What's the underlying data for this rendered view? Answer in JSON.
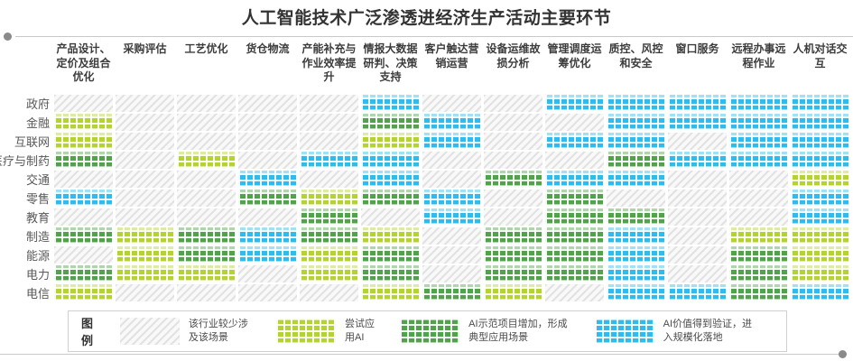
{
  "title": "人工智能技术广泛渗透进经济生产活动主要环节",
  "legend": {
    "title": "图例",
    "items": [
      {
        "code": 0,
        "label": "该行业较少涉及该场景"
      },
      {
        "code": 1,
        "label": "尝试应用AI"
      },
      {
        "code": 2,
        "label": "AI示范项目增加，形成典型应用场景"
      },
      {
        "code": 3,
        "label": "AI价值得到验证，进入规模化落地"
      }
    ]
  },
  "chart_data": {
    "type": "heatmap",
    "title": "人工智能技术广泛渗透进经济生产活动主要环节",
    "columns": [
      "产品设计、定价及组合优化",
      "采购评估",
      "工艺优化",
      "货仓物流",
      "产能补充与作业效率提升",
      "情报大数据研判、决策支持",
      "客户触达营销运营",
      "设备运维故损分析",
      "管理调度运筹优化",
      "质控、风控和安全",
      "窗口服务",
      "远程办事远程作业",
      "人机对话交互"
    ],
    "rows": [
      "政府",
      "金融",
      "互联网",
      "医疗与制药",
      "交通",
      "零售",
      "教育",
      "制造",
      "能源",
      "电力",
      "电信"
    ],
    "levels": [
      {
        "code": 0,
        "label": "该行业较少涉及该场景",
        "color": "#ededed",
        "style": "gray-stripes"
      },
      {
        "code": 1,
        "label": "尝试应用AI",
        "color": "#b5d233",
        "style": "checker"
      },
      {
        "code": 2,
        "label": "AI示范项目增加，形成典型应用场景",
        "color": "#52a14b",
        "style": "checker"
      },
      {
        "code": 3,
        "label": "AI价值得到验证，进入规模化落地",
        "color": "#2fbcec",
        "style": "checker"
      }
    ],
    "values": [
      [
        0,
        0,
        0,
        0,
        0,
        3,
        0,
        0,
        3,
        3,
        3,
        3,
        3
      ],
      [
        1,
        0,
        0,
        0,
        0,
        2,
        3,
        0,
        0,
        3,
        3,
        3,
        3
      ],
      [
        1,
        0,
        0,
        0,
        0,
        1,
        3,
        0,
        3,
        3,
        0,
        3,
        3
      ],
      [
        2,
        0,
        1,
        0,
        3,
        3,
        0,
        0,
        0,
        2,
        3,
        3,
        3
      ],
      [
        0,
        0,
        0,
        3,
        0,
        3,
        0,
        2,
        3,
        3,
        0,
        0,
        1
      ],
      [
        3,
        0,
        0,
        2,
        1,
        2,
        3,
        0,
        2,
        0,
        0,
        0,
        3
      ],
      [
        0,
        0,
        0,
        0,
        2,
        0,
        3,
        0,
        2,
        2,
        0,
        0,
        3
      ],
      [
        2,
        1,
        2,
        3,
        2,
        1,
        0,
        2,
        2,
        3,
        0,
        1,
        1
      ],
      [
        0,
        1,
        2,
        3,
        1,
        2,
        0,
        2,
        2,
        3,
        0,
        2,
        1
      ],
      [
        2,
        1,
        1,
        0,
        1,
        2,
        0,
        2,
        2,
        3,
        0,
        2,
        1
      ],
      [
        1,
        0,
        0,
        0,
        0,
        1,
        2,
        1,
        0,
        3,
        3,
        2,
        3
      ]
    ]
  }
}
